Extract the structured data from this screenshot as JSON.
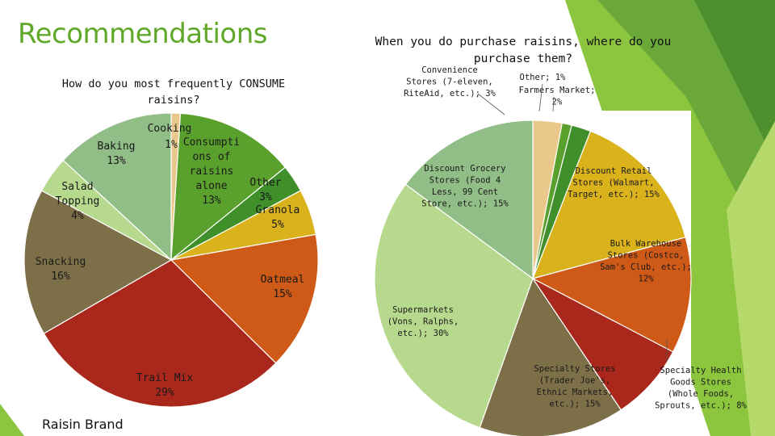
{
  "page": {
    "title": "Recommendations",
    "footer_label": "Raisin Brand",
    "accent_colors": [
      "#5fa82a",
      "#8cc63f",
      "#b5d96a"
    ]
  },
  "chart_data": [
    {
      "type": "pie",
      "title": "How do you most frequently CONSUME raisins?",
      "slices": [
        {
          "label": "Cooking 1%",
          "value": 1,
          "color": "#e9c98b"
        },
        {
          "label": "Consumption of raisins alone 13%",
          "value": 13,
          "color": "#5aa02c"
        },
        {
          "label": "Other 3%",
          "value": 3,
          "color": "#3f8f2a"
        },
        {
          "label": "Granola 5%",
          "value": 5,
          "color": "#d9b21c"
        },
        {
          "label": "Oatmeal 15%",
          "value": 15,
          "color": "#cf5a17"
        },
        {
          "label": "Trail Mix 29%",
          "value": 29,
          "color": "#a9281b"
        },
        {
          "label": "Snacking 16%",
          "value": 16,
          "color": "#7d7049"
        },
        {
          "label": "Salad Topping 4%",
          "value": 4,
          "color": "#b7d98d"
        },
        {
          "label": "Baking 13%",
          "value": 13,
          "color": "#91bd86"
        }
      ],
      "data_labels": [
        {
          "lines": [
            "Cooking"
          ]
        },
        {
          "lines": [
            "1%"
          ]
        },
        {
          "lines": [
            "Consumpti",
            "ons of",
            "raisins",
            "alone",
            "13%"
          ]
        },
        {
          "lines": [
            "Other",
            "3%"
          ]
        },
        {
          "lines": [
            "Granola",
            "5%"
          ]
        },
        {
          "lines": [
            "Oatmeal",
            "15%"
          ]
        },
        {
          "lines": [
            "Trail Mix",
            "29%"
          ]
        },
        {
          "lines": [
            "Snacking",
            "16%"
          ]
        },
        {
          "lines": [
            "Salad",
            "Topping",
            "4%"
          ]
        },
        {
          "lines": [
            "Baking",
            "13%"
          ]
        }
      ]
    },
    {
      "type": "pie",
      "title": "When you do purchase raisins, where do you purchase them?",
      "slices": [
        {
          "label": "Convenience Stores (7-eleven, RiteAid, etc.); 3%",
          "value": 3,
          "color": "#e9c98b"
        },
        {
          "label": "Other; 1%",
          "value": 1,
          "color": "#5aa02c"
        },
        {
          "label": "Farmers Market; 2%",
          "value": 2,
          "color": "#3f8f2a"
        },
        {
          "label": "Discount Retail Stores (Walmart, Target, etc.); 15%",
          "value": 15,
          "color": "#d9b21c"
        },
        {
          "label": "Bulk Warehouse Stores (Costco, Sam's Club, etc.); 12%",
          "value": 12,
          "color": "#cf5a17"
        },
        {
          "label": "Specialty Health Goods Stores (Whole Foods, Sprouts, etc.); 8%",
          "value": 8,
          "color": "#a9281b"
        },
        {
          "label": "Specialty Stores (Trader Joe's, Ethnic Markets, etc.); 15%",
          "value": 15,
          "color": "#7d7049"
        },
        {
          "label": "Supermarkets (Vons, Ralphs, etc.); 30%",
          "value": 30,
          "color": "#b7d98d"
        },
        {
          "label": "Discount Grocery Stores (Food 4 Less, 99 Cent Store, etc.); 15%",
          "value": 15,
          "color": "#91bd86"
        }
      ],
      "data_labels": [
        {
          "lines": [
            "Convenience",
            "Stores (7-eleven,",
            "RiteAid, etc.); 3%"
          ]
        },
        {
          "lines": [
            "Other; 1%"
          ]
        },
        {
          "lines": [
            "Farmers Market;",
            "2%"
          ]
        },
        {
          "lines": [
            "Discount Retail",
            "Stores (Walmart,",
            "Target, etc.); 15%"
          ]
        },
        {
          "lines": [
            "Bulk Warehouse",
            "Stores (Costco,",
            "Sam's Club, etc.);",
            "12%"
          ]
        },
        {
          "lines": [
            "Specialty Health",
            "Goods Stores",
            "(Whole Foods,",
            "Sprouts, etc.); 8%"
          ]
        },
        {
          "lines": [
            "Specialty Stores",
            "(Trader Joe's,",
            "Ethnic Markets,",
            "etc.); 15%"
          ]
        },
        {
          "lines": [
            "Supermarkets",
            "(Vons, Ralphs,",
            "etc.); 30%"
          ]
        },
        {
          "lines": [
            "Discount Grocery",
            "Stores (Food 4",
            "Less, 99 Cent",
            "Store, etc.); 15%"
          ]
        }
      ]
    }
  ]
}
